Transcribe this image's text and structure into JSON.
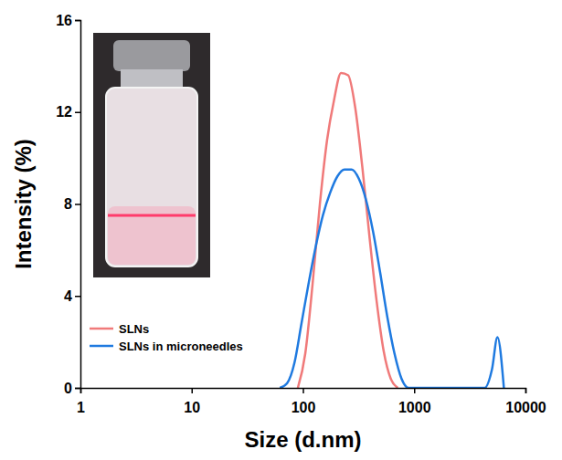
{
  "chart_data": {
    "type": "line",
    "x_label": "Size (d.nm)",
    "y_label": "Intensity (%)",
    "log": "x",
    "grid": false,
    "legend": "lower left",
    "xlim": [
      1,
      10000
    ],
    "xticks": [
      1,
      10,
      100,
      1000,
      10000
    ],
    "ylim": [
      0,
      16
    ],
    "yticks": [
      0,
      4,
      8,
      12,
      16
    ],
    "series": [
      {
        "name": "SLNs",
        "color": "#f07a7a",
        "x": [
          90,
          105,
          122,
          142,
          165,
          190,
          220,
          255,
          295,
          342,
          396,
          459,
          532,
          616,
          714
        ],
        "values": [
          0,
          1.5,
          4.5,
          8,
          10.8,
          12.5,
          13.7,
          13.6,
          12.2,
          9.6,
          6.6,
          3.8,
          1.6,
          0.4,
          0
        ]
      },
      {
        "name": "SLNs in microneedles",
        "color": "#1f7ae0",
        "x": [
          62,
          72,
          84,
          97,
          113,
          131,
          151,
          176,
          204,
          236,
          274,
          318,
          368,
          427,
          495,
          573,
          665,
          770,
          892,
          4300,
          5000,
          5600,
          6400
        ],
        "values": [
          0,
          0.2,
          1.1,
          2.8,
          4.6,
          6.2,
          7.5,
          8.5,
          9.2,
          9.5,
          9.5,
          9.1,
          8.2,
          6.8,
          5.0,
          3.1,
          1.5,
          0.4,
          0,
          0,
          0.8,
          2.2,
          0
        ]
      }
    ]
  }
}
